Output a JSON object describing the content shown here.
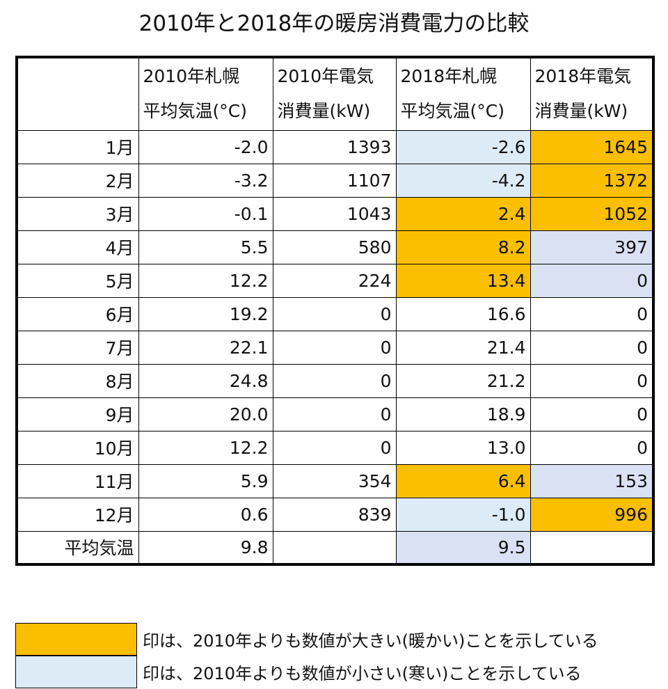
{
  "title": "2010年と2018年の暖房消費電力の比較",
  "table": {
    "headers": [
      [
        "2010年札幌",
        "平均気温(°C)"
      ],
      [
        "2010年電気",
        "消費量(kW)"
      ],
      [
        "2018年札幌",
        "平均気温(°C)"
      ],
      [
        "2018年電気",
        "消費量(kW)"
      ]
    ],
    "rows": [
      {
        "label": "1月",
        "cells": [
          "-2.0",
          "1393",
          "-2.6",
          "1645"
        ],
        "fills": [
          null,
          null,
          "#ddebf7",
          "#fcbf00"
        ]
      },
      {
        "label": "2月",
        "cells": [
          "-3.2",
          "1107",
          "-4.2",
          "1372"
        ],
        "fills": [
          null,
          null,
          "#ddebf7",
          "#fcbf00"
        ]
      },
      {
        "label": "3月",
        "cells": [
          "-0.1",
          "1043",
          "2.4",
          "1052"
        ],
        "fills": [
          null,
          null,
          "#fcbf00",
          "#fcbf00"
        ]
      },
      {
        "label": "4月",
        "cells": [
          "5.5",
          "580",
          "8.2",
          "397"
        ],
        "fills": [
          null,
          null,
          "#fcbf00",
          "#d9e1f2"
        ]
      },
      {
        "label": "5月",
        "cells": [
          "12.2",
          "224",
          "13.4",
          "0"
        ],
        "fills": [
          null,
          null,
          "#fcbf00",
          "#d9e1f2"
        ]
      },
      {
        "label": "6月",
        "cells": [
          "19.2",
          "0",
          "16.6",
          "0"
        ],
        "fills": [
          null,
          null,
          null,
          null
        ]
      },
      {
        "label": "7月",
        "cells": [
          "22.1",
          "0",
          "21.4",
          "0"
        ],
        "fills": [
          null,
          null,
          null,
          null
        ]
      },
      {
        "label": "8月",
        "cells": [
          "24.8",
          "0",
          "21.2",
          "0"
        ],
        "fills": [
          null,
          null,
          null,
          null
        ]
      },
      {
        "label": "9月",
        "cells": [
          "20.0",
          "0",
          "18.9",
          "0"
        ],
        "fills": [
          null,
          null,
          null,
          null
        ]
      },
      {
        "label": "10月",
        "cells": [
          "12.2",
          "0",
          "13.0",
          "0"
        ],
        "fills": [
          null,
          null,
          null,
          null
        ]
      },
      {
        "label": "11月",
        "cells": [
          "5.9",
          "354",
          "6.4",
          "153"
        ],
        "fills": [
          null,
          null,
          "#fcbf00",
          "#d9e1f2"
        ]
      },
      {
        "label": "12月",
        "cells": [
          "0.6",
          "839",
          "-1.0",
          "996"
        ],
        "fills": [
          null,
          null,
          "#ddebf7",
          "#fcbf00"
        ]
      },
      {
        "label": "平均気温",
        "cells": [
          "9.8",
          null,
          "9.5",
          null
        ],
        "fills": [
          null,
          null,
          "#d9e1f2",
          null
        ]
      }
    ]
  },
  "legend": [
    {
      "color": "#fcbf00",
      "text": "印は、2010年よりも数値が大きい(暖かい)ことを示している"
    },
    {
      "color": "#ddebf7",
      "text": "印は、2010年よりも数値が小さい(寒い)ことを示している"
    }
  ]
}
